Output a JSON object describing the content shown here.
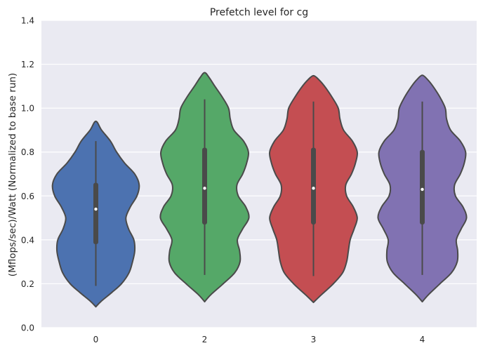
{
  "chart_data": {
    "type": "violin",
    "title": "Prefetch level for cg",
    "xlabel": "",
    "ylabel": "(Mflops/sec)/Watt (Normalized to base run)",
    "categories": [
      "0",
      "2",
      "3",
      "4"
    ],
    "ylim": [
      0.0,
      1.4
    ],
    "yticks": [
      0.0,
      0.2,
      0.4,
      0.6,
      0.8,
      1.0,
      1.2,
      1.4
    ],
    "ytick_labels": [
      "0.0",
      "0.2",
      "0.4",
      "0.6",
      "0.8",
      "1.0",
      "1.2",
      "1.4"
    ],
    "grid": true,
    "legend": "none",
    "colors": [
      "#4c72b0",
      "#55a868",
      "#c44e52",
      "#8172b2"
    ],
    "background": "#eaeaf2",
    "violins": [
      {
        "category": "0",
        "color": "#4c72b0",
        "ymin_extent": 0.095,
        "ymax_extent": 0.94,
        "whisker": [
          0.19,
          0.85
        ],
        "q1": 0.38,
        "median": 0.54,
        "q3": 0.66,
        "density": [
          [
            0.095,
            0.0
          ],
          [
            0.12,
            0.12
          ],
          [
            0.16,
            0.36
          ],
          [
            0.2,
            0.58
          ],
          [
            0.25,
            0.75
          ],
          [
            0.3,
            0.83
          ],
          [
            0.35,
            0.88
          ],
          [
            0.4,
            0.86
          ],
          [
            0.45,
            0.74
          ],
          [
            0.5,
            0.68
          ],
          [
            0.55,
            0.78
          ],
          [
            0.6,
            0.93
          ],
          [
            0.65,
            0.98
          ],
          [
            0.7,
            0.88
          ],
          [
            0.75,
            0.65
          ],
          [
            0.8,
            0.47
          ],
          [
            0.85,
            0.33
          ],
          [
            0.9,
            0.13
          ],
          [
            0.94,
            0.0
          ]
        ]
      },
      {
        "category": "2",
        "color": "#55a868",
        "ymin_extent": 0.118,
        "ymax_extent": 1.162,
        "whisker": [
          0.24,
          1.04
        ],
        "q1": 0.47,
        "median": 0.635,
        "q3": 0.82,
        "density": [
          [
            0.118,
            0.0
          ],
          [
            0.15,
            0.14
          ],
          [
            0.2,
            0.42
          ],
          [
            0.25,
            0.68
          ],
          [
            0.3,
            0.8
          ],
          [
            0.35,
            0.79
          ],
          [
            0.4,
            0.74
          ],
          [
            0.45,
            0.86
          ],
          [
            0.5,
            1.0
          ],
          [
            0.55,
            0.93
          ],
          [
            0.6,
            0.76
          ],
          [
            0.65,
            0.73
          ],
          [
            0.7,
            0.86
          ],
          [
            0.75,
            0.95
          ],
          [
            0.8,
            0.99
          ],
          [
            0.85,
            0.88
          ],
          [
            0.9,
            0.66
          ],
          [
            0.95,
            0.58
          ],
          [
            1.0,
            0.54
          ],
          [
            1.05,
            0.4
          ],
          [
            1.1,
            0.23
          ],
          [
            1.14,
            0.1
          ],
          [
            1.162,
            0.0
          ]
        ]
      },
      {
        "category": "3",
        "color": "#c44e52",
        "ymin_extent": 0.115,
        "ymax_extent": 1.148,
        "whisker": [
          0.235,
          1.03
        ],
        "q1": 0.47,
        "median": 0.635,
        "q3": 0.82,
        "density": [
          [
            0.115,
            0.0
          ],
          [
            0.15,
            0.18
          ],
          [
            0.2,
            0.45
          ],
          [
            0.25,
            0.66
          ],
          [
            0.3,
            0.75
          ],
          [
            0.35,
            0.79
          ],
          [
            0.4,
            0.83
          ],
          [
            0.45,
            0.92
          ],
          [
            0.5,
            0.99
          ],
          [
            0.55,
            0.9
          ],
          [
            0.6,
            0.75
          ],
          [
            0.65,
            0.73
          ],
          [
            0.7,
            0.86
          ],
          [
            0.75,
            0.95
          ],
          [
            0.8,
            0.99
          ],
          [
            0.85,
            0.88
          ],
          [
            0.9,
            0.68
          ],
          [
            0.95,
            0.6
          ],
          [
            1.0,
            0.56
          ],
          [
            1.05,
            0.42
          ],
          [
            1.1,
            0.25
          ],
          [
            1.13,
            0.12
          ],
          [
            1.148,
            0.0
          ]
        ]
      },
      {
        "category": "4",
        "color": "#8172b2",
        "ymin_extent": 0.118,
        "ymax_extent": 1.15,
        "whisker": [
          0.24,
          1.03
        ],
        "q1": 0.47,
        "median": 0.63,
        "q3": 0.81,
        "density": [
          [
            0.118,
            0.0
          ],
          [
            0.15,
            0.14
          ],
          [
            0.2,
            0.4
          ],
          [
            0.25,
            0.66
          ],
          [
            0.3,
            0.79
          ],
          [
            0.35,
            0.8
          ],
          [
            0.4,
            0.77
          ],
          [
            0.45,
            0.88
          ],
          [
            0.5,
            1.0
          ],
          [
            0.55,
            0.92
          ],
          [
            0.6,
            0.75
          ],
          [
            0.65,
            0.73
          ],
          [
            0.7,
            0.86
          ],
          [
            0.75,
            0.95
          ],
          [
            0.8,
            0.98
          ],
          [
            0.85,
            0.86
          ],
          [
            0.9,
            0.64
          ],
          [
            0.95,
            0.55
          ],
          [
            1.0,
            0.52
          ],
          [
            1.05,
            0.4
          ],
          [
            1.1,
            0.24
          ],
          [
            1.13,
            0.12
          ],
          [
            1.15,
            0.0
          ]
        ]
      }
    ]
  }
}
